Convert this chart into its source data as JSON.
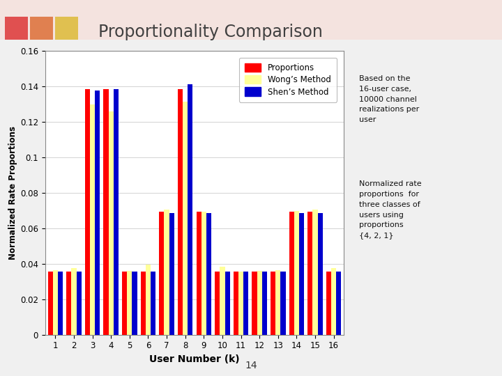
{
  "title": "Proportionality Comparison",
  "xlabel": "User Number (k)",
  "ylabel": "Normalized Rate Proportions",
  "legend_labels": [
    "Proportions",
    "Wong’s Method",
    "Shen’s Method"
  ],
  "colors": [
    "#ff0000",
    "#ffff99",
    "#0000cd"
  ],
  "users": [
    1,
    2,
    3,
    4,
    5,
    6,
    7,
    8,
    9,
    10,
    11,
    12,
    13,
    14,
    15,
    16
  ],
  "proportions": [
    0.0357,
    0.0357,
    0.1385,
    0.1385,
    0.0357,
    0.0357,
    0.0693,
    0.1385,
    0.0693,
    0.0357,
    0.0357,
    0.0357,
    0.0357,
    0.0693,
    0.0693,
    0.0357
  ],
  "wongs_method": [
    0.0364,
    0.0374,
    0.1296,
    0.126,
    0.036,
    0.0395,
    0.0706,
    0.1315,
    0.0693,
    0.0383,
    0.0357,
    0.0358,
    0.0362,
    0.0696,
    0.0706,
    0.0374
  ],
  "shens_method": [
    0.0357,
    0.0357,
    0.1375,
    0.1385,
    0.0357,
    0.0357,
    0.0686,
    0.141,
    0.0686,
    0.0357,
    0.0357,
    0.0357,
    0.0357,
    0.0686,
    0.0686,
    0.0357
  ],
  "ylim": [
    0,
    0.16
  ],
  "yticks": [
    0,
    0.02,
    0.04,
    0.06,
    0.08,
    0.1,
    0.12,
    0.14,
    0.16
  ],
  "slide_bg": "#f0f0f0",
  "chart_bg": "#ffffff",
  "annotation_text1": "Based on the\n16-user case,\n10000 channel\nrealizations per\nuser",
  "annotation_text2": "Normalized rate\nproportions  for\nthree classes of\nusers using\nproportions\n{4, 2, 1}",
  "page_number": "14",
  "corner_colors": [
    "#e05050",
    "#e08050",
    "#e0c050"
  ],
  "title_color": "#404040"
}
